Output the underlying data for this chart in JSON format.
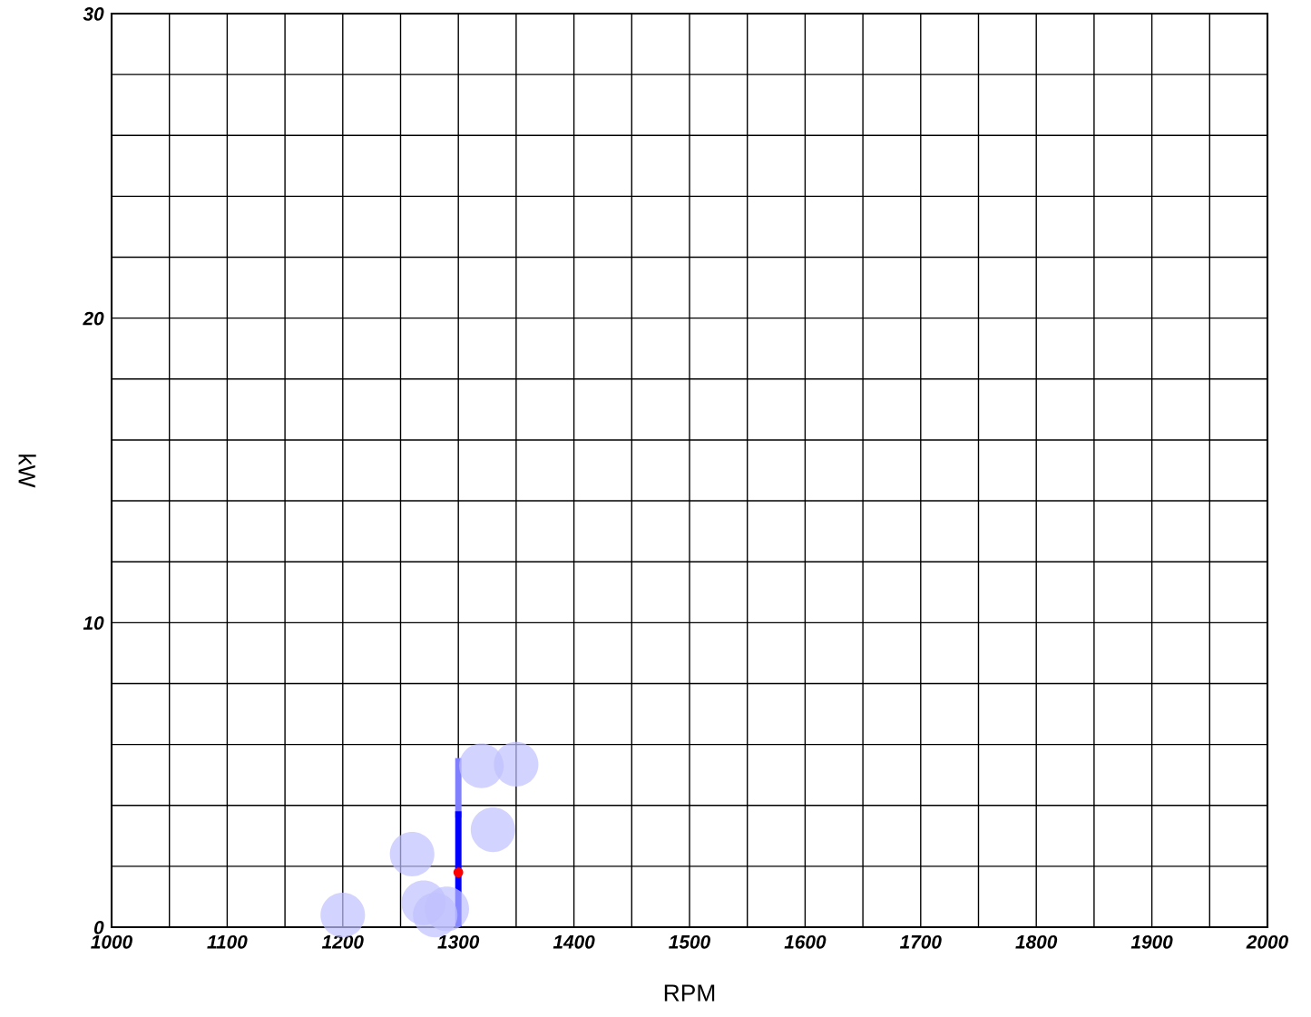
{
  "chart_data": {
    "type": "scatter",
    "xlabel": "RPM",
    "ylabel": "kW",
    "xlim": [
      1000,
      2000
    ],
    "ylim": [
      0,
      30
    ],
    "xticks": [
      1000,
      {
        "value": 1050,
        "label": null
      },
      1100,
      {
        "value": 1150,
        "label": null
      },
      1200,
      {
        "value": 1250,
        "label": null
      },
      1300,
      {
        "value": 1350,
        "label": null
      },
      1400,
      {
        "value": 1450,
        "label": null
      },
      1500,
      {
        "value": 1550,
        "label": null
      },
      1600,
      {
        "value": 1650,
        "label": null
      },
      1700,
      {
        "value": 1750,
        "label": null
      },
      1800,
      {
        "value": 1850,
        "label": null
      },
      1900,
      {
        "value": 1950,
        "label": null
      },
      2000
    ],
    "yticks": [
      0,
      {
        "value": 2,
        "label": null
      },
      {
        "value": 4,
        "label": null
      },
      {
        "value": 6,
        "label": null
      },
      {
        "value": 8,
        "label": null
      },
      10,
      {
        "value": 12,
        "label": null
      },
      {
        "value": 14,
        "label": null
      },
      {
        "value": 16,
        "label": null
      },
      {
        "value": 18,
        "label": null
      },
      20,
      {
        "value": 22,
        "label": null
      },
      {
        "value": 24,
        "label": null
      },
      {
        "value": 26,
        "label": null
      },
      {
        "value": 28,
        "label": null
      },
      30
    ],
    "grid": true,
    "marker": "circle",
    "series": [
      {
        "type": "line",
        "color": "#8080ff",
        "x": [
          1300,
          1300
        ],
        "values": [
          3.7,
          5.45
        ],
        "marker": "none"
      },
      {
        "type": "line",
        "color": "#0000ff",
        "x": [
          1300,
          1300
        ],
        "values": [
          0,
          3.7
        ],
        "marker": "none"
      },
      {
        "type": "bubble",
        "color": "#c0c0ff",
        "x": [
          1200,
          1260,
          1270,
          1280,
          1290,
          1320,
          1350,
          1330
        ],
        "values": [
          0.4,
          2.4,
          0.8,
          0.4,
          0.6,
          5.3,
          5.35,
          3.2
        ],
        "sizes": [
          1,
          1,
          1,
          1,
          1,
          1,
          1,
          1
        ]
      },
      {
        "color": "#ff0000",
        "x": [
          1300
        ],
        "values": [
          1.8
        ]
      }
    ]
  }
}
